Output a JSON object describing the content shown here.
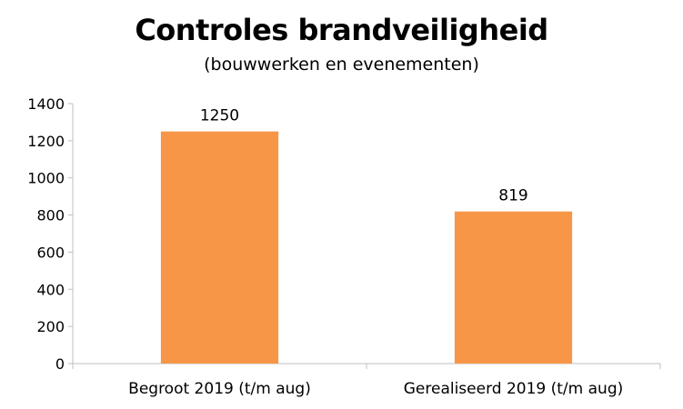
{
  "chart_data": {
    "type": "bar",
    "title": "Controles brandveiligheid",
    "subtitle": "(bouwwerken en evenementen)",
    "categories": [
      "Begroot 2019 (t/m aug)",
      "Gerealiseerd 2019 (t/m aug)"
    ],
    "values": [
      1250,
      819
    ],
    "data_labels": [
      "1250",
      "819"
    ],
    "ylim": [
      0,
      1400
    ],
    "yticks": [
      0,
      200,
      400,
      600,
      800,
      1000,
      1200,
      1400
    ],
    "grid": false,
    "legend": "none",
    "bar_color": "#F79646",
    "axis_color": "#BFBFBF"
  }
}
